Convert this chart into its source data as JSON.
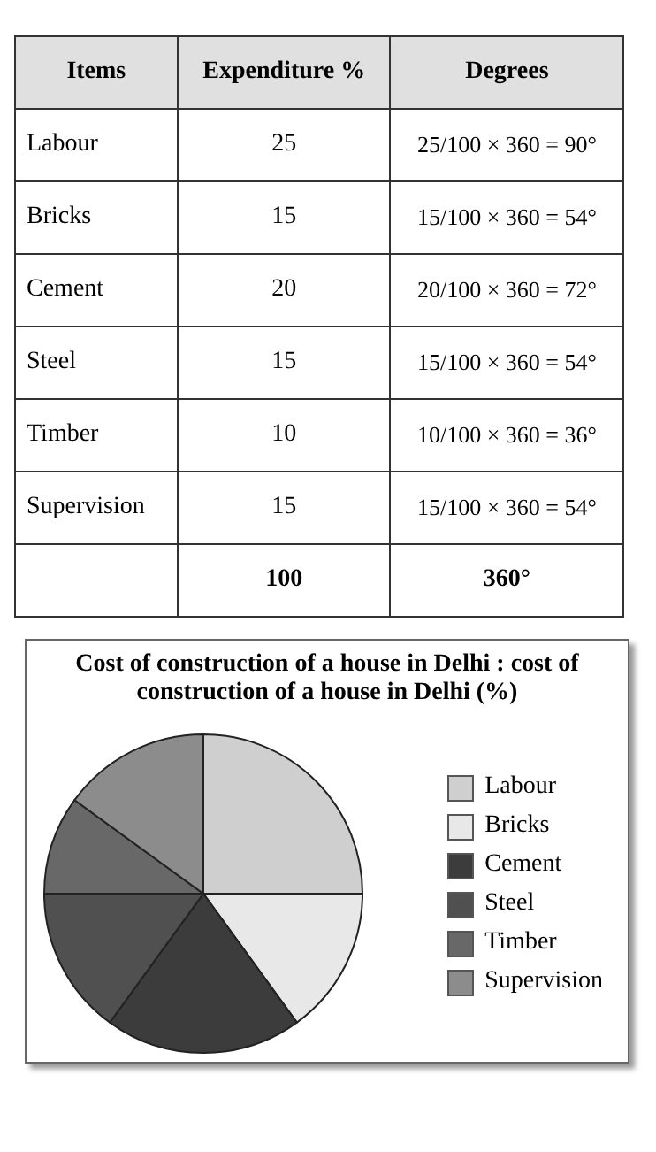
{
  "chart_data": [
    {
      "type": "other",
      "annotations": [
        "Items",
        "Expenditure %",
        "Degrees",
        "Labour",
        "25",
        "25/100 × 360 = 90°",
        "Bricks",
        "15",
        "15/100 × 360 = 54°",
        "Cement",
        "20",
        "20/100 × 360 = 72°",
        "Steel",
        "15",
        "15/100 × 360 = 54°",
        "Timber",
        "10",
        "10/100 × 360 = 36°",
        "Supervision",
        "15",
        "15/100 × 360 = 54°",
        "100",
        "360°"
      ]
    },
    {
      "type": "pie",
      "title": "Cost of construction of a house in Delhi : cost of construction of a house in Delhi (%)",
      "categories": [
        "Labour",
        "Bricks",
        "Cement",
        "Steel",
        "Timber",
        "Supervision"
      ],
      "values": [
        25,
        15,
        20,
        15,
        10,
        15
      ],
      "colors": [
        "#cfcfcf",
        "#e8e8e8",
        "#3c3c3c",
        "#505050",
        "#686868",
        "#8c8c8c"
      ],
      "legend": "right"
    }
  ]
}
